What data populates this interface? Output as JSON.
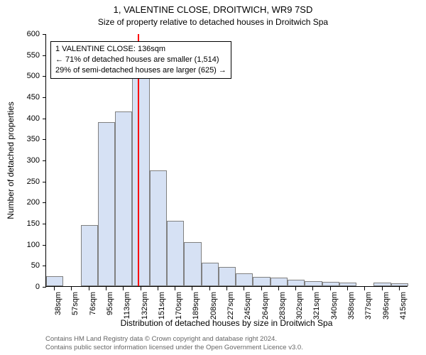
{
  "chart": {
    "type": "histogram",
    "title": "1, VALENTINE CLOSE, DROITWICH, WR9 7SD",
    "subtitle": "Size of property relative to detached houses in Droitwich Spa",
    "y_axis_label": "Number of detached properties",
    "x_axis_label": "Distribution of detached houses by size in Droitwich Spa",
    "ylim": [
      0,
      600
    ],
    "ytick_step": 50,
    "yticks": [
      0,
      50,
      100,
      150,
      200,
      250,
      300,
      350,
      400,
      450,
      500,
      550,
      600
    ],
    "x_categories": [
      "38sqm",
      "57sqm",
      "76sqm",
      "95sqm",
      "113sqm",
      "132sqm",
      "151sqm",
      "170sqm",
      "189sqm",
      "208sqm",
      "227sqm",
      "245sqm",
      "264sqm",
      "283sqm",
      "302sqm",
      "321sqm",
      "340sqm",
      "358sqm",
      "377sqm",
      "396sqm",
      "415sqm"
    ],
    "bar_values": [
      24,
      0,
      145,
      390,
      415,
      498,
      275,
      155,
      105,
      55,
      45,
      30,
      22,
      20,
      15,
      12,
      10,
      8,
      0,
      8,
      6
    ],
    "bar_fill_color": "#d6e1f4",
    "bar_border_color": "#808080",
    "background_color": "#ffffff",
    "axis_color": "#000000",
    "marker": {
      "position_index": 5.3,
      "color": "#ff0000"
    },
    "callout": {
      "lines": [
        "1 VALENTINE CLOSE: 136sqm",
        "← 71% of detached houses are smaller (1,514)",
        "29% of semi-detached houses are larger (625) →"
      ],
      "border_color": "#000000",
      "background_color": "#ffffff",
      "fontsize": 11
    },
    "bar_width_ratio": 1.0,
    "axis_fontsize": 11,
    "label_fontsize": 12,
    "title_fontsize": 13
  },
  "attribution": {
    "line1": "Contains HM Land Registry data © Crown copyright and database right 2024.",
    "line2": "Contains public sector information licensed under the Open Government Licence v3.0.",
    "color": "#666666",
    "fontsize": 9.5
  }
}
